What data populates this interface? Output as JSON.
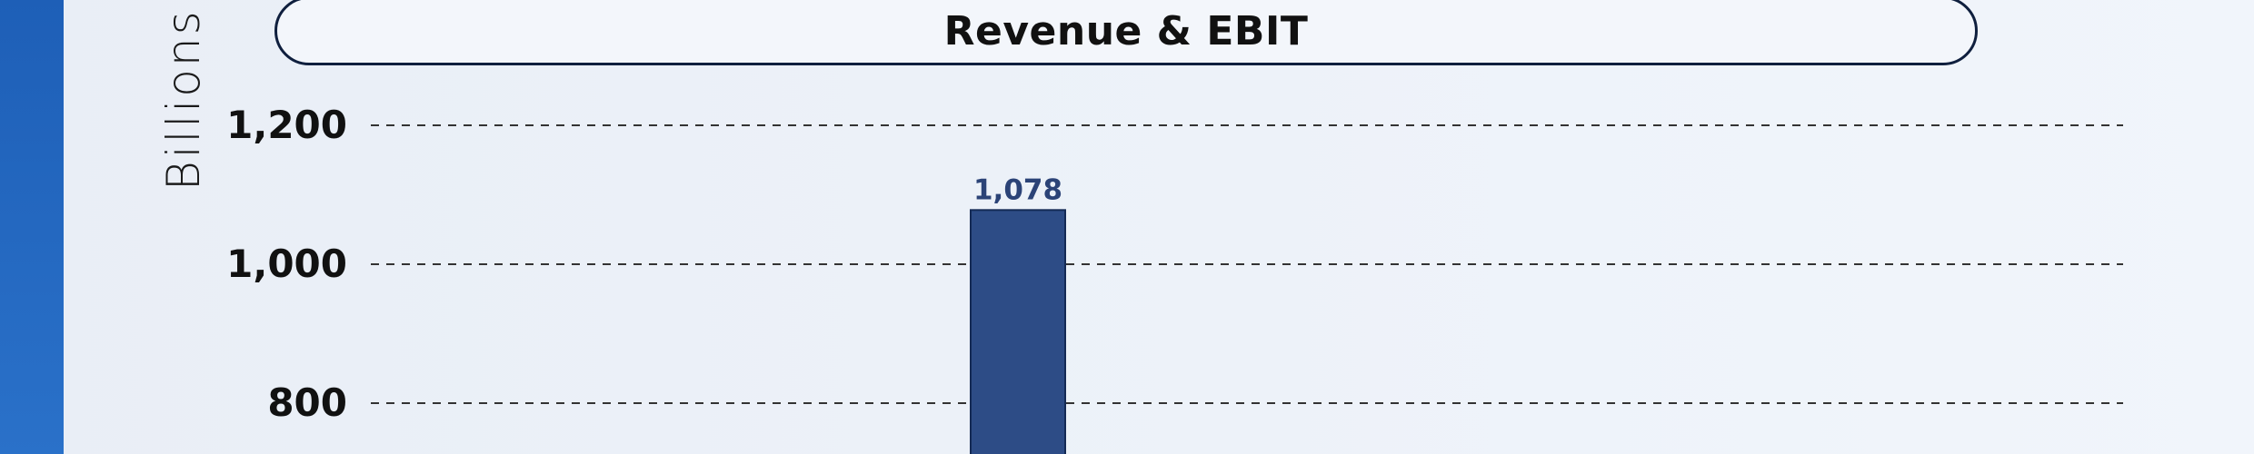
{
  "colors": {
    "background": "#edf2f9",
    "left_band": "#2166c0",
    "bar": "#2d4c86",
    "bar_border": "#142a55",
    "grid": "#333333",
    "data_label": "#2b4377",
    "title_border": "#0f1f3e"
  },
  "chart_data": {
    "type": "bar",
    "title": "Revenue & EBIT",
    "ylabel": "Billions",
    "ylim": [
      0,
      1200
    ],
    "yticks": [
      800,
      1000,
      1200
    ],
    "ytick_labels": [
      "800",
      "1,000",
      "1,200"
    ],
    "grid": true,
    "series": [
      {
        "values": [
          1078
        ],
        "data_labels": [
          "1,078"
        ]
      }
    ]
  }
}
